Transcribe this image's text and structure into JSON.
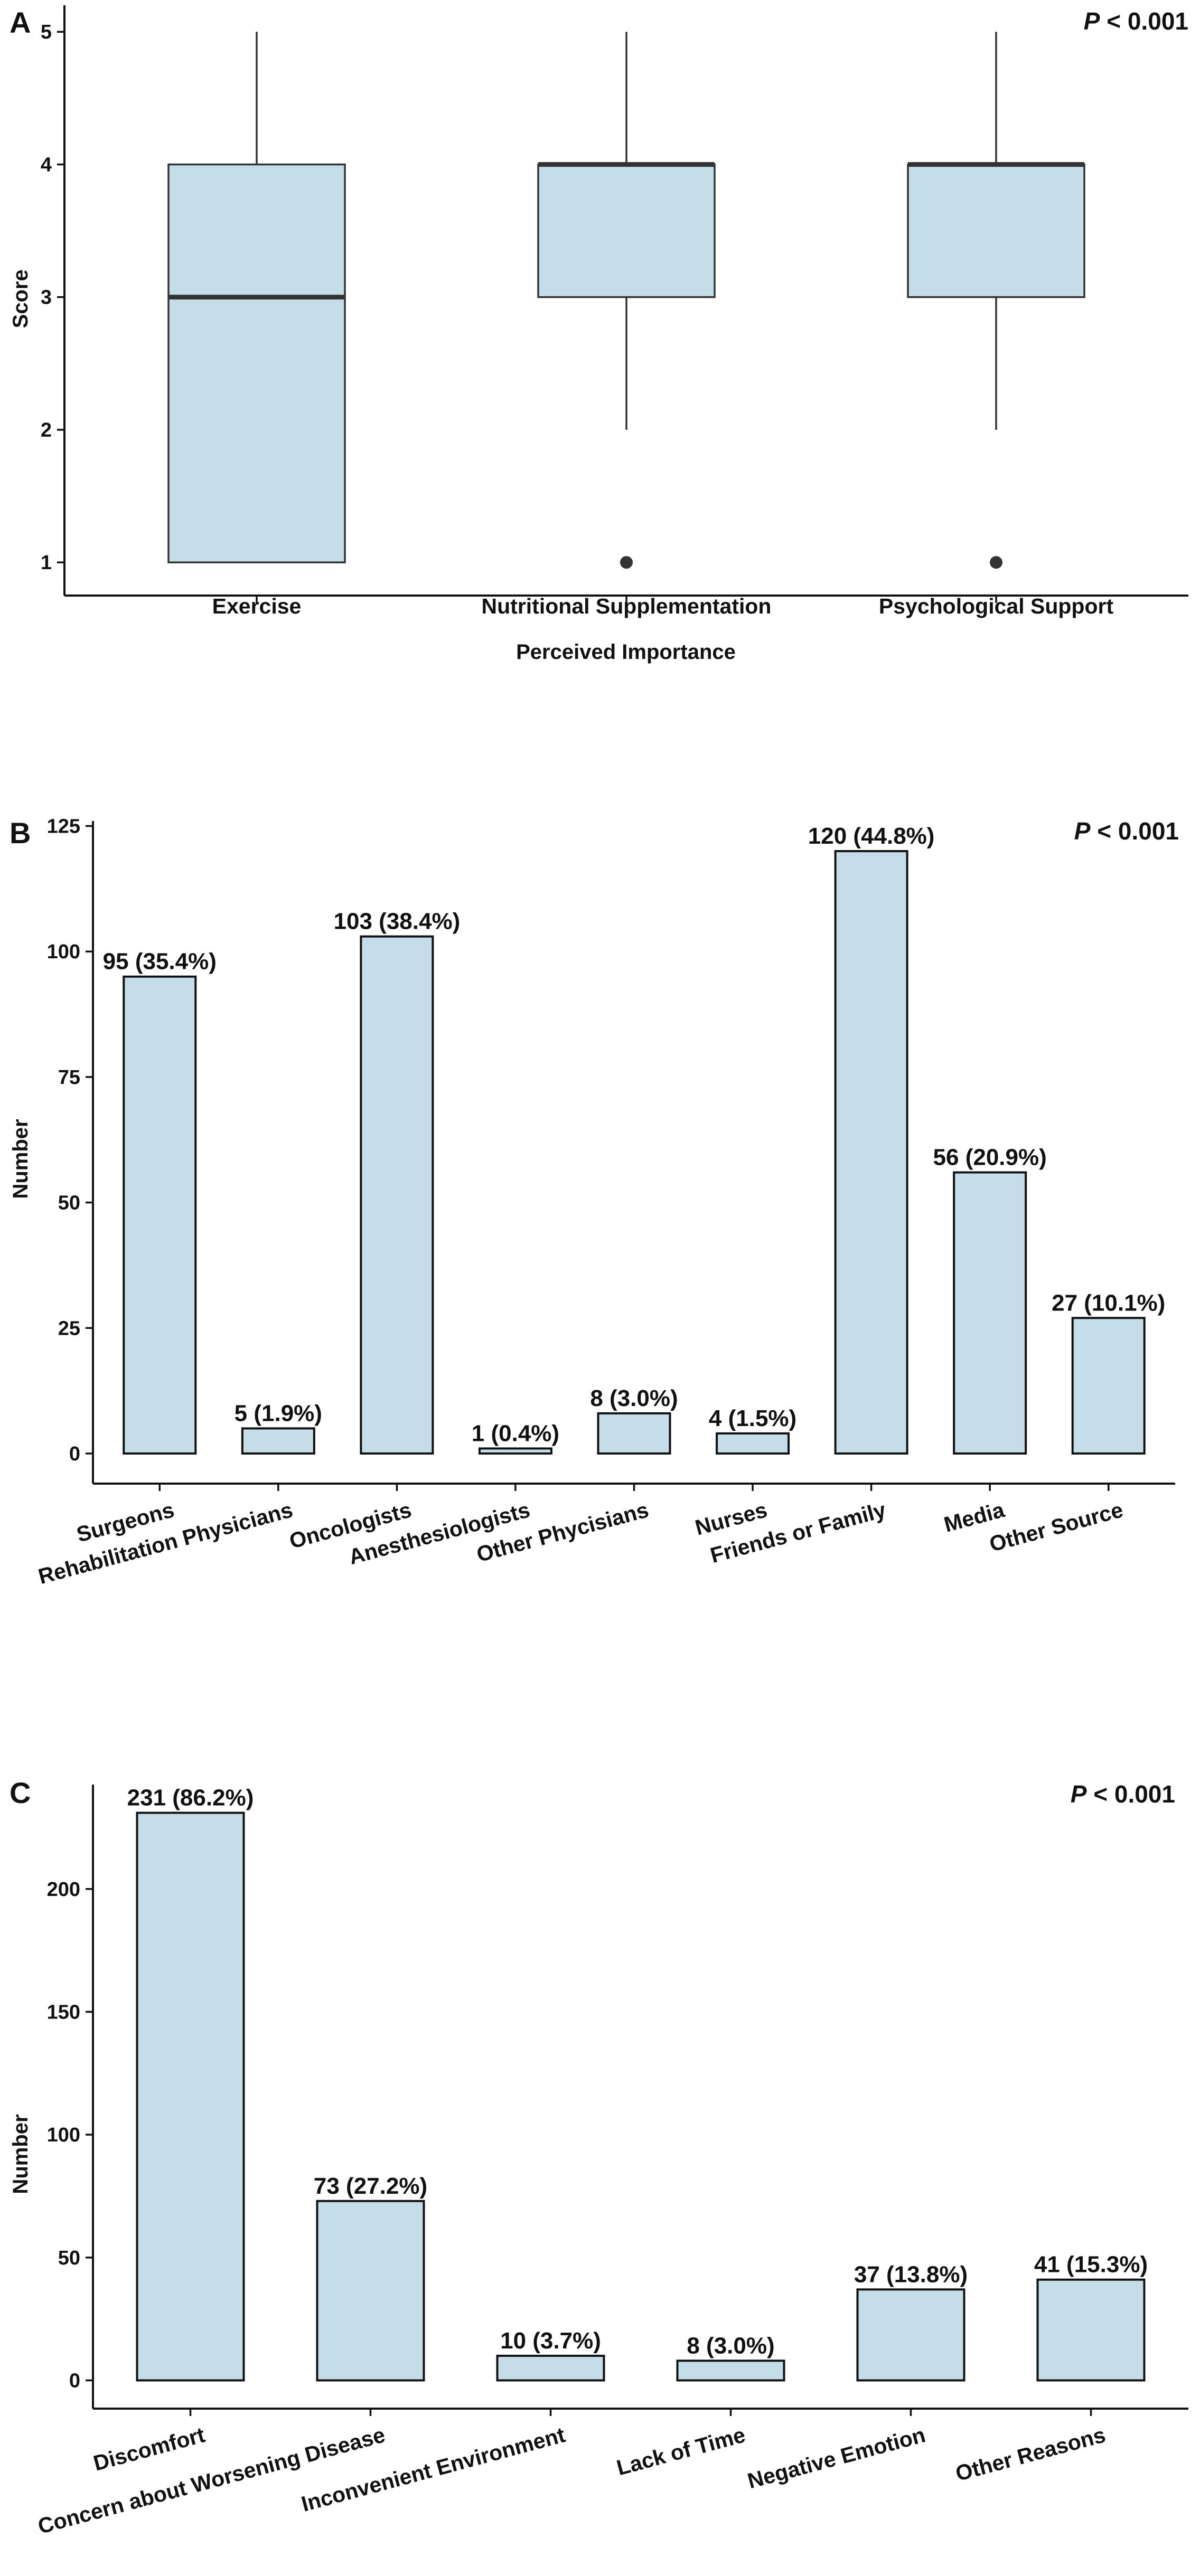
{
  "chart_data": [
    {
      "panel": "A",
      "type": "box",
      "p_value": {
        "label": "P",
        "text": " < 0.001"
      },
      "ylabel": "Score",
      "xlabel": "Perceived Importance",
      "ylim": [
        0.75,
        5.2
      ],
      "yticks": [
        1,
        2,
        3,
        4,
        5
      ],
      "fill_color": "#c5dde8",
      "edge_color": "#333333",
      "categories": [
        "Exercise",
        "Nutritional Supplementation",
        "Psychological Support"
      ],
      "boxes": [
        {
          "whisker_low": 1,
          "q1": 1,
          "median": 3,
          "q3": 4,
          "whisker_high": 5,
          "outliers": []
        },
        {
          "whisker_low": 2,
          "q1": 3,
          "median": 4,
          "q3": 4,
          "whisker_high": 5,
          "outliers": [
            1
          ]
        },
        {
          "whisker_low": 2,
          "q1": 3,
          "median": 4,
          "q3": 4,
          "whisker_high": 5,
          "outliers": [
            1
          ]
        }
      ]
    },
    {
      "panel": "B",
      "type": "bar",
      "p_value": {
        "label": "P",
        "text": " < 0.001"
      },
      "ylabel": "Number",
      "xlabel": "",
      "ylim": [
        -6,
        126
      ],
      "yticks": [
        0,
        25,
        50,
        75,
        100,
        125
      ],
      "fill_color": "#c5dde8",
      "edge_color": "#111111",
      "categories": [
        "Surgeons",
        "Rehabilitation Physicians",
        "Oncologists",
        "Anesthesiologists",
        "Other Phycisians",
        "Nurses",
        "Friends or Family",
        "Media",
        "Other Source"
      ],
      "values": [
        95,
        5,
        103,
        1,
        8,
        4,
        120,
        56,
        27
      ],
      "data_labels": [
        "95 (35.4%)",
        "5 (1.9%)",
        "103 (38.4%)",
        "1 (0.4%)",
        "8 (3.0%)",
        "4 (1.5%)",
        "120 (44.8%)",
        "56 (20.9%)",
        "27 (10.1%)"
      ]
    },
    {
      "panel": "C",
      "type": "bar",
      "p_value": {
        "label": "P",
        "text": " < 0.001"
      },
      "ylabel": "Number",
      "xlabel": "",
      "ylim": [
        -11.5,
        242.5
      ],
      "yticks": [
        0,
        50,
        100,
        150,
        200
      ],
      "fill_color": "#c5dde8",
      "edge_color": "#111111",
      "categories": [
        "Discomfort",
        "Concern about Worsening Disease",
        "Inconvenient Environment",
        "Lack of Time",
        "Negative Emotion",
        "Other Reasons"
      ],
      "values": [
        231,
        73,
        10,
        8,
        37,
        41
      ],
      "data_labels": [
        "231 (86.2%)",
        "73 (27.2%)",
        "10 (3.7%)",
        "8 (3.0%)",
        "37 (13.8%)",
        "41 (15.3%)"
      ]
    }
  ]
}
